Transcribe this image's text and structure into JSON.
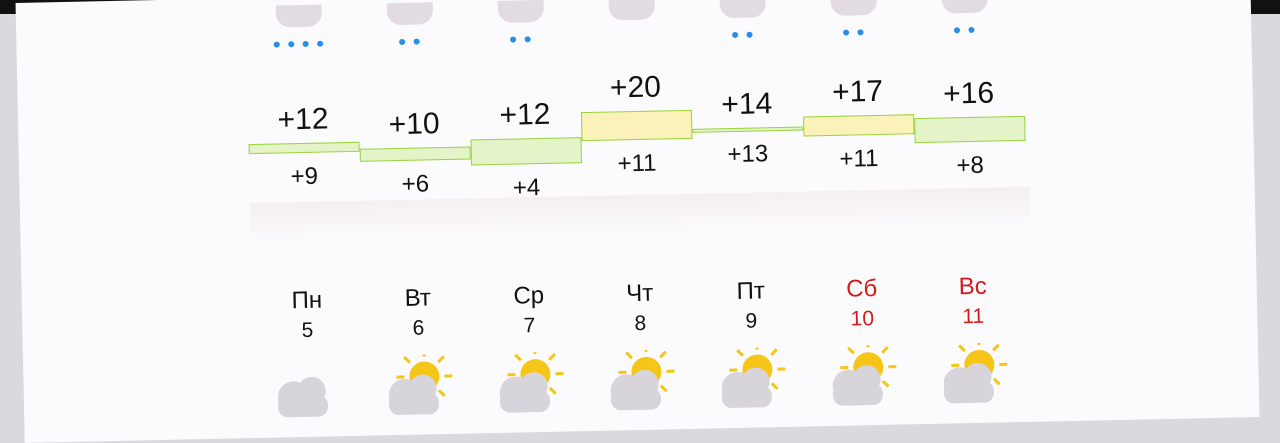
{
  "days": [
    {
      "name": "Пн",
      "date": "5",
      "high": "+12",
      "low": "+9",
      "hi": 12,
      "lo": 9,
      "weekend": false,
      "rain_drops": 4,
      "icon": "cloud-icon"
    },
    {
      "name": "Вт",
      "date": "6",
      "high": "+10",
      "low": "+6",
      "hi": 10,
      "lo": 6,
      "weekend": false,
      "rain_drops": 2,
      "icon": "partly-cloudy-icon"
    },
    {
      "name": "Ср",
      "date": "7",
      "high": "+12",
      "low": "+4",
      "hi": 12,
      "lo": 4,
      "weekend": false,
      "rain_drops": 2,
      "icon": "sun-cloud-icon"
    },
    {
      "name": "Чт",
      "date": "8",
      "high": "+20",
      "low": "+11",
      "hi": 20,
      "lo": 11,
      "weekend": false,
      "rain_drops": 0,
      "icon": "partly-cloudy-icon"
    },
    {
      "name": "Пт",
      "date": "9",
      "high": "+14",
      "low": "+13",
      "hi": 14,
      "lo": 13,
      "weekend": false,
      "rain_drops": 2,
      "icon": "partly-cloudy-icon"
    },
    {
      "name": "Сб",
      "date": "10",
      "high": "+17",
      "low": "+11",
      "hi": 17,
      "lo": 11,
      "weekend": true,
      "rain_drops": 2,
      "icon": "sun-cloud-icon"
    },
    {
      "name": "Вс",
      "date": "11",
      "high": "+16",
      "low": "+8",
      "hi": 16,
      "lo": 8,
      "weekend": true,
      "rain_drops": 2,
      "icon": "sun-cloud-icon"
    }
  ],
  "colors": {
    "weekend": "#d41a1a",
    "weekday": "#111111",
    "rain": "#2a8ee6",
    "band_warm": "#faf2b8",
    "band_cool": "#e4f3c8",
    "band_border": "#9ad342",
    "sun": "#f5c518"
  }
}
